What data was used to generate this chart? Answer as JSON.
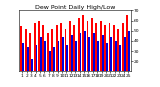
{
  "title": "Dew Point Daily High/Low",
  "num_days": 25,
  "highs": [
    55,
    52,
    48,
    58,
    60,
    56,
    48,
    52,
    56,
    58,
    52,
    60,
    56,
    63,
    66,
    60,
    63,
    58,
    60,
    56,
    58,
    56,
    52,
    58,
    66
  ],
  "lows": [
    38,
    34,
    22,
    36,
    44,
    40,
    30,
    34,
    40,
    44,
    36,
    46,
    40,
    48,
    50,
    44,
    48,
    40,
    46,
    38,
    44,
    40,
    36,
    44,
    50
  ],
  "high_color": "#FF0000",
  "low_color": "#0000DD",
  "background_color": "#FFFFFF",
  "ymin": 10,
  "ymax": 70,
  "ytick_values": [
    20,
    30,
    40,
    50,
    60,
    70
  ],
  "bar_width": 0.42,
  "title_fontsize": 4.5,
  "tick_fontsize": 3.2,
  "label_fontsize": 3.2
}
